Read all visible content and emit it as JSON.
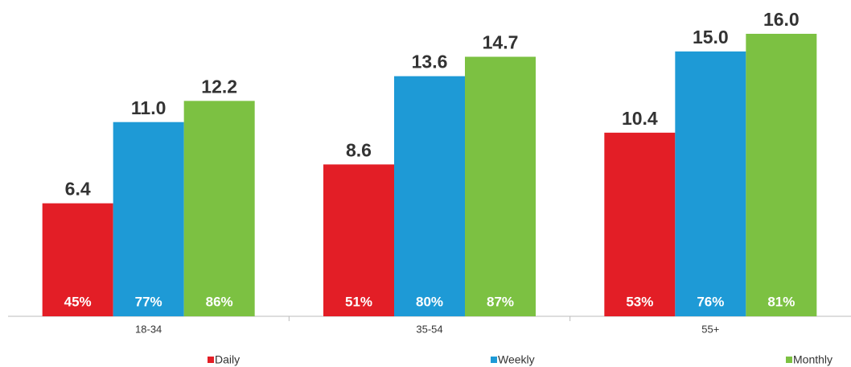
{
  "chart_data": {
    "type": "bar",
    "categories": [
      "18-34",
      "35-54",
      "55+"
    ],
    "series": [
      {
        "name": "Daily",
        "color": "#e31e26",
        "values": [
          6.4,
          8.6,
          10.4
        ],
        "value_labels": [
          "6.4",
          "8.6",
          "10.4"
        ],
        "inner_labels": [
          "45%",
          "51%",
          "53%"
        ]
      },
      {
        "name": "Weekly",
        "color": "#1e9ad6",
        "values": [
          11.0,
          13.6,
          15.0
        ],
        "value_labels": [
          "11.0",
          "13.6",
          "15.0"
        ],
        "inner_labels": [
          "77%",
          "80%",
          "76%"
        ]
      },
      {
        "name": "Monthly",
        "color": "#7cc142",
        "values": [
          12.2,
          14.7,
          16.0
        ],
        "value_labels": [
          "12.2",
          "14.7",
          "16.0"
        ],
        "inner_labels": [
          "86%",
          "87%",
          "81%"
        ]
      }
    ],
    "ylim": [
      0,
      16
    ],
    "legend": "bottom"
  }
}
